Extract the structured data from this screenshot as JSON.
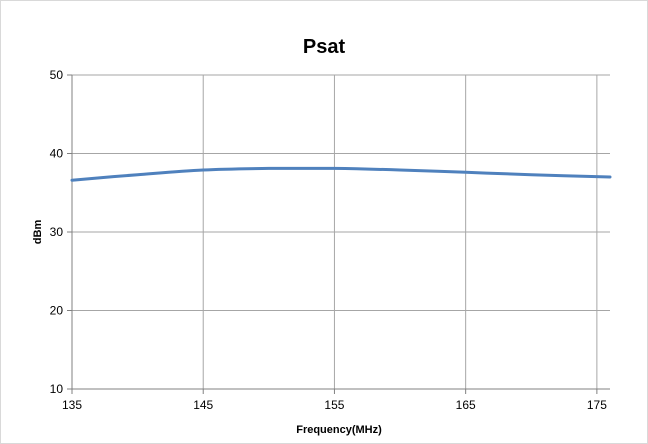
{
  "chart_data": {
    "type": "line",
    "title": "Psat",
    "xlabel": "Frequency(MHz)",
    "ylabel": "dBm",
    "xlim": [
      135,
      176
    ],
    "ylim": [
      10,
      50
    ],
    "x_ticks": [
      135,
      145,
      155,
      165,
      175
    ],
    "y_ticks": [
      10,
      20,
      30,
      40,
      50
    ],
    "grid": true,
    "legend": "none",
    "colors": {
      "line": "#4f81bd",
      "grid": "#a6a6a6",
      "axis": "#808080"
    },
    "series": [
      {
        "x": [
          135,
          140,
          145,
          150,
          155,
          160,
          165,
          170,
          176
        ],
        "values": [
          36.6,
          37.3,
          37.9,
          38.1,
          38.1,
          37.9,
          37.6,
          37.3,
          37.0
        ]
      }
    ]
  }
}
